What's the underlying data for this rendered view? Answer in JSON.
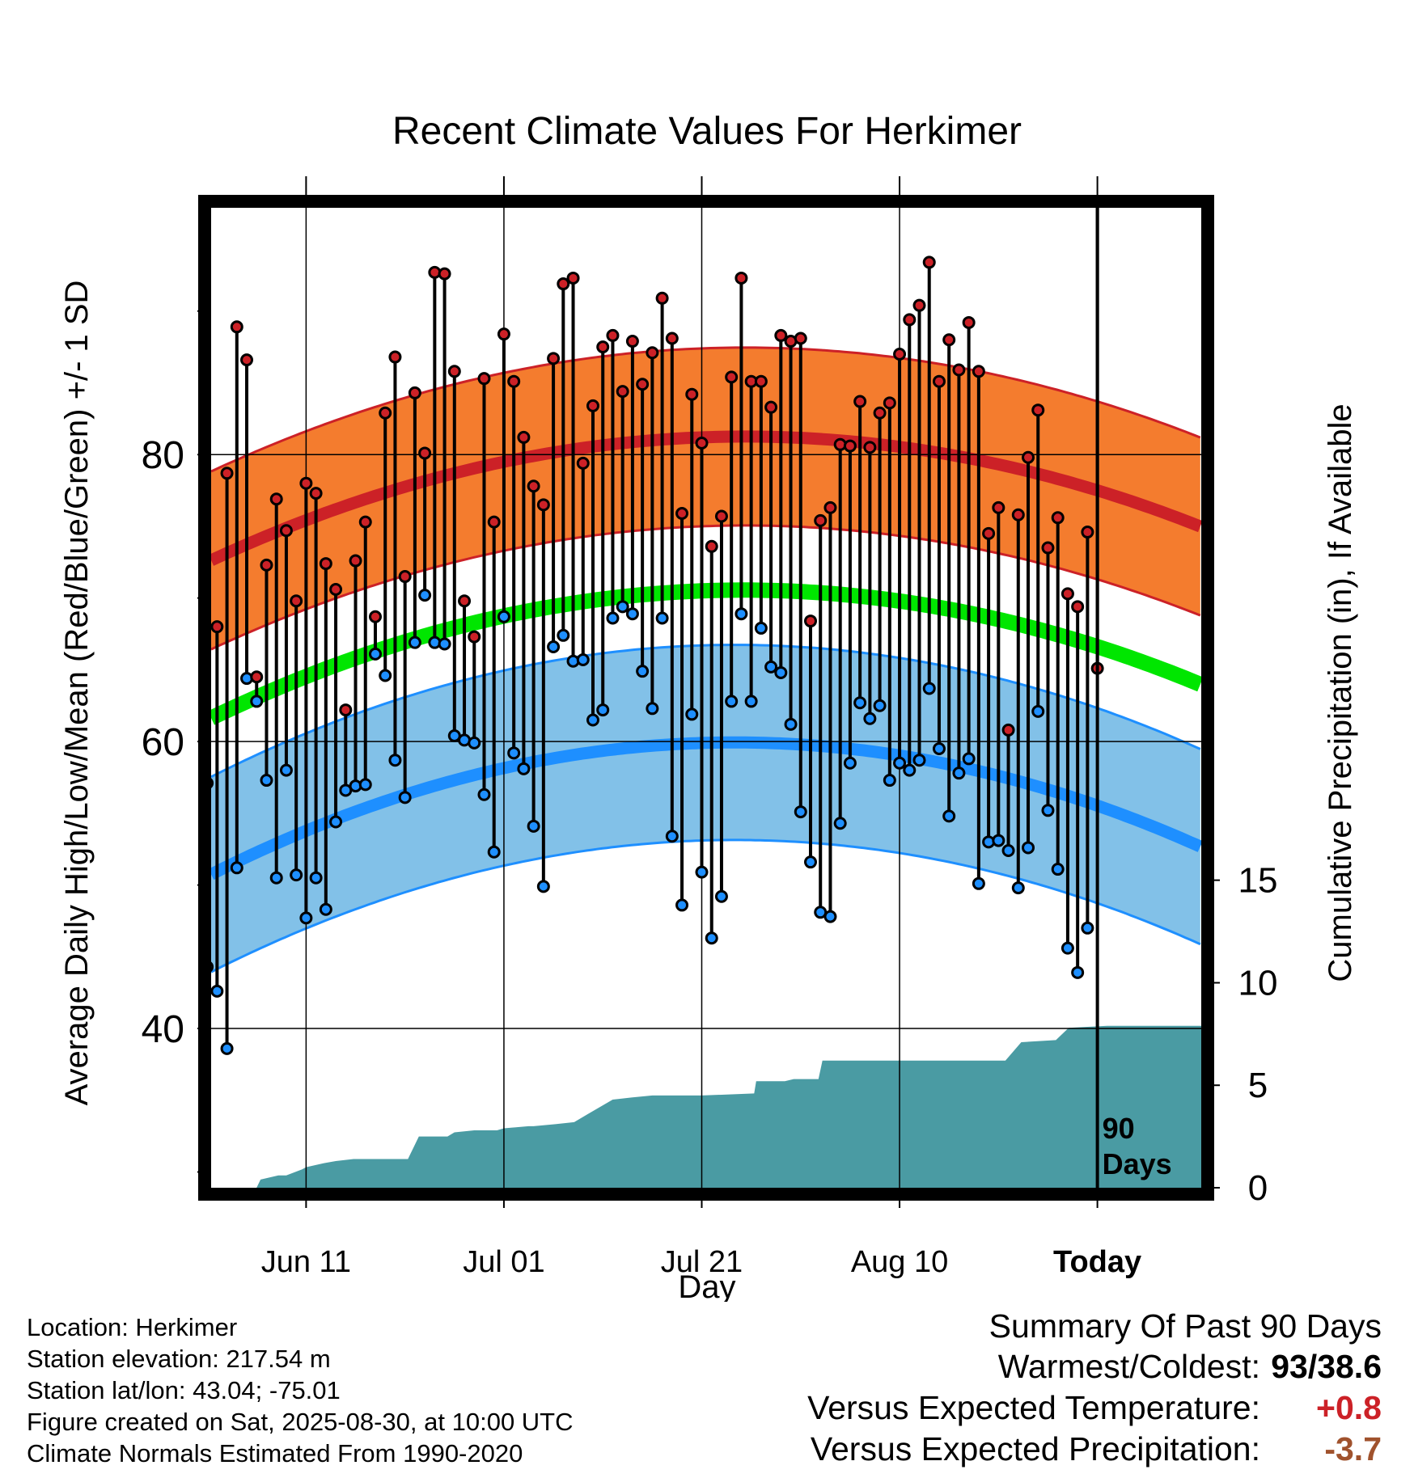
{
  "chart_data": {
    "type": "line",
    "title": "Recent Climate Values For Herkimer",
    "xlabel": "Day",
    "ylabel": "Average Daily High/Low/Mean (Red/Blue/Green) +/- 1 SD",
    "y2label": "Cumulative Precipitation (in), If Available",
    "x_tick_labels": [
      "Jun 11",
      "Jul 01",
      "Jul 21",
      "Aug 10",
      "Today"
    ],
    "x_tick_day_index": [
      10,
      30,
      50,
      70,
      90
    ],
    "y_ticks": [
      40,
      60,
      80
    ],
    "y_minor_ticks": [
      30,
      50,
      70,
      90
    ],
    "ylim": [
      28.9,
      97.2
    ],
    "y2_ticks": [
      0,
      5,
      10,
      15
    ],
    "y2lim": [
      0,
      47.8
    ],
    "xlim": [
      0.4,
      100.5
    ],
    "grid": true,
    "today_marker": {
      "day_index": 90,
      "label": "90 Days"
    },
    "normal_high": {
      "days": [
        0,
        50,
        100
      ],
      "values": [
        72.5,
        81.2,
        75.1
      ],
      "sd": 6.2,
      "color": "#cc2127"
    },
    "normal_low": {
      "days": [
        0,
        50,
        100
      ],
      "values": [
        50.6,
        59.9,
        52.8
      ],
      "sd": 6.8,
      "color": "#1e8fff"
    },
    "normal_mean": {
      "days": [
        0,
        50,
        100
      ],
      "values": [
        61.5,
        70.5,
        64.1
      ],
      "color": "#00e600"
    },
    "high_band_color": "#f47c2e",
    "low_band_color": "#82c1e8",
    "precip_color": "#4a9ba3",
    "obs_high_color": "#cc2127",
    "obs_low_color": "#1e8fff",
    "highs": [
      57.1,
      68,
      78.7,
      88.9,
      86.6,
      64.5,
      72.3,
      76.9,
      74.7,
      69.8,
      78,
      77.3,
      72.4,
      70.6,
      62.2,
      72.6,
      75.3,
      68.7,
      82.9,
      86.8,
      71.5,
      84.3,
      80.1,
      92.7,
      92.6,
      85.8,
      69.8,
      67.3,
      85.3,
      75.3,
      88.4,
      85.1,
      81.2,
      77.8,
      76.5,
      86.7,
      91.9,
      92.3,
      79.4,
      83.4,
      87.5,
      88.3,
      84.4,
      87.9,
      84.9,
      87.1,
      90.9,
      88.1,
      75.9,
      84.2,
      80.8,
      73.6,
      75.7,
      85.4,
      92.3,
      85.1,
      85.1,
      83.3,
      88.3,
      87.9,
      88.1,
      68.4,
      75.4,
      76.3,
      80.7,
      80.6,
      83.7,
      80.5,
      82.9,
      83.6,
      87,
      89.4,
      90.4,
      93.4,
      85.1,
      88,
      85.9,
      89.2,
      85.8,
      74.5,
      76.3,
      60.8,
      75.8,
      79.8,
      83.1,
      73.5,
      75.6,
      70.3,
      69.4,
      74.6,
      65.1
    ],
    "lows": [
      44.3,
      42.6,
      38.6,
      51.2,
      64.4,
      62.8,
      57.3,
      50.5,
      58,
      50.7,
      47.7,
      50.5,
      48.3,
      54.4,
      56.6,
      56.9,
      57,
      66.1,
      64.6,
      58.7,
      56.1,
      66.9,
      70.2,
      66.9,
      66.8,
      60.4,
      60.1,
      59.9,
      56.3,
      52.3,
      68.7,
      59.2,
      58.1,
      54.1,
      49.9,
      66.6,
      67.4,
      65.6,
      65.7,
      61.5,
      62.2,
      68.6,
      69.4,
      68.9,
      64.9,
      62.3,
      68.6,
      53.4,
      48.6,
      61.9,
      50.9,
      46.3,
      49.2,
      62.8,
      68.9,
      62.8,
      67.9,
      65.2,
      64.8,
      61.2,
      55.1,
      51.6,
      48.1,
      47.8,
      54.3,
      58.5,
      62.7,
      61.6,
      62.5,
      57.3,
      58.5,
      58,
      58.7,
      63.7,
      59.5,
      54.8,
      57.8,
      58.8,
      50.1,
      53,
      53.1,
      52.4,
      49.8,
      52.6,
      62.1,
      55.2,
      51.1,
      45.6,
      43.9,
      47
    ],
    "precip_cum": {
      "days": [
        0,
        5,
        5.4,
        7.2,
        8,
        9.6,
        10,
        11.8,
        13,
        14.8,
        20.3,
        21.4,
        24.3,
        25,
        27,
        29.3,
        30,
        32.5,
        33,
        35.2,
        37.1,
        38.5,
        41,
        42.9,
        45,
        50,
        55.3,
        55.5,
        58.4,
        59.3,
        61.8,
        62.2,
        80.7,
        82.3,
        85.8,
        87.1,
        91,
        100.5
      ],
      "values": [
        0,
        0,
        0.4,
        0.6,
        0.6,
        0.9,
        1,
        1.2,
        1.3,
        1.4,
        1.4,
        2.5,
        2.5,
        2.7,
        2.8,
        2.8,
        2.9,
        3,
        3,
        3.1,
        3.2,
        3.6,
        4.3,
        4.4,
        4.5,
        4.5,
        4.6,
        5.2,
        5.2,
        5.3,
        5.3,
        6.2,
        6.2,
        7.1,
        7.2,
        7.8,
        7.9,
        7.9
      ]
    }
  },
  "station_info": {
    "location": "Location: Herkimer",
    "elevation": "Station elevation: 217.54 m",
    "latlon": "Station lat/lon: 43.04; -75.01",
    "created": "Figure created on Sat, 2025-08-30, at 10:00 UTC",
    "normals": "Climate Normals Estimated From 1990-2020"
  },
  "summary": {
    "heading": "Summary Of Past 90 Days",
    "warmest_coldest_label": "Warmest/Coldest:",
    "warmest_coldest_value": "93/38.6",
    "temp_label": "Versus Expected Temperature:",
    "temp_value": "+0.8",
    "temp_color": "#cc2127",
    "precip_label": "Versus Expected Precipitation:",
    "precip_value": "-3.7",
    "precip_color": "#a0522d"
  }
}
